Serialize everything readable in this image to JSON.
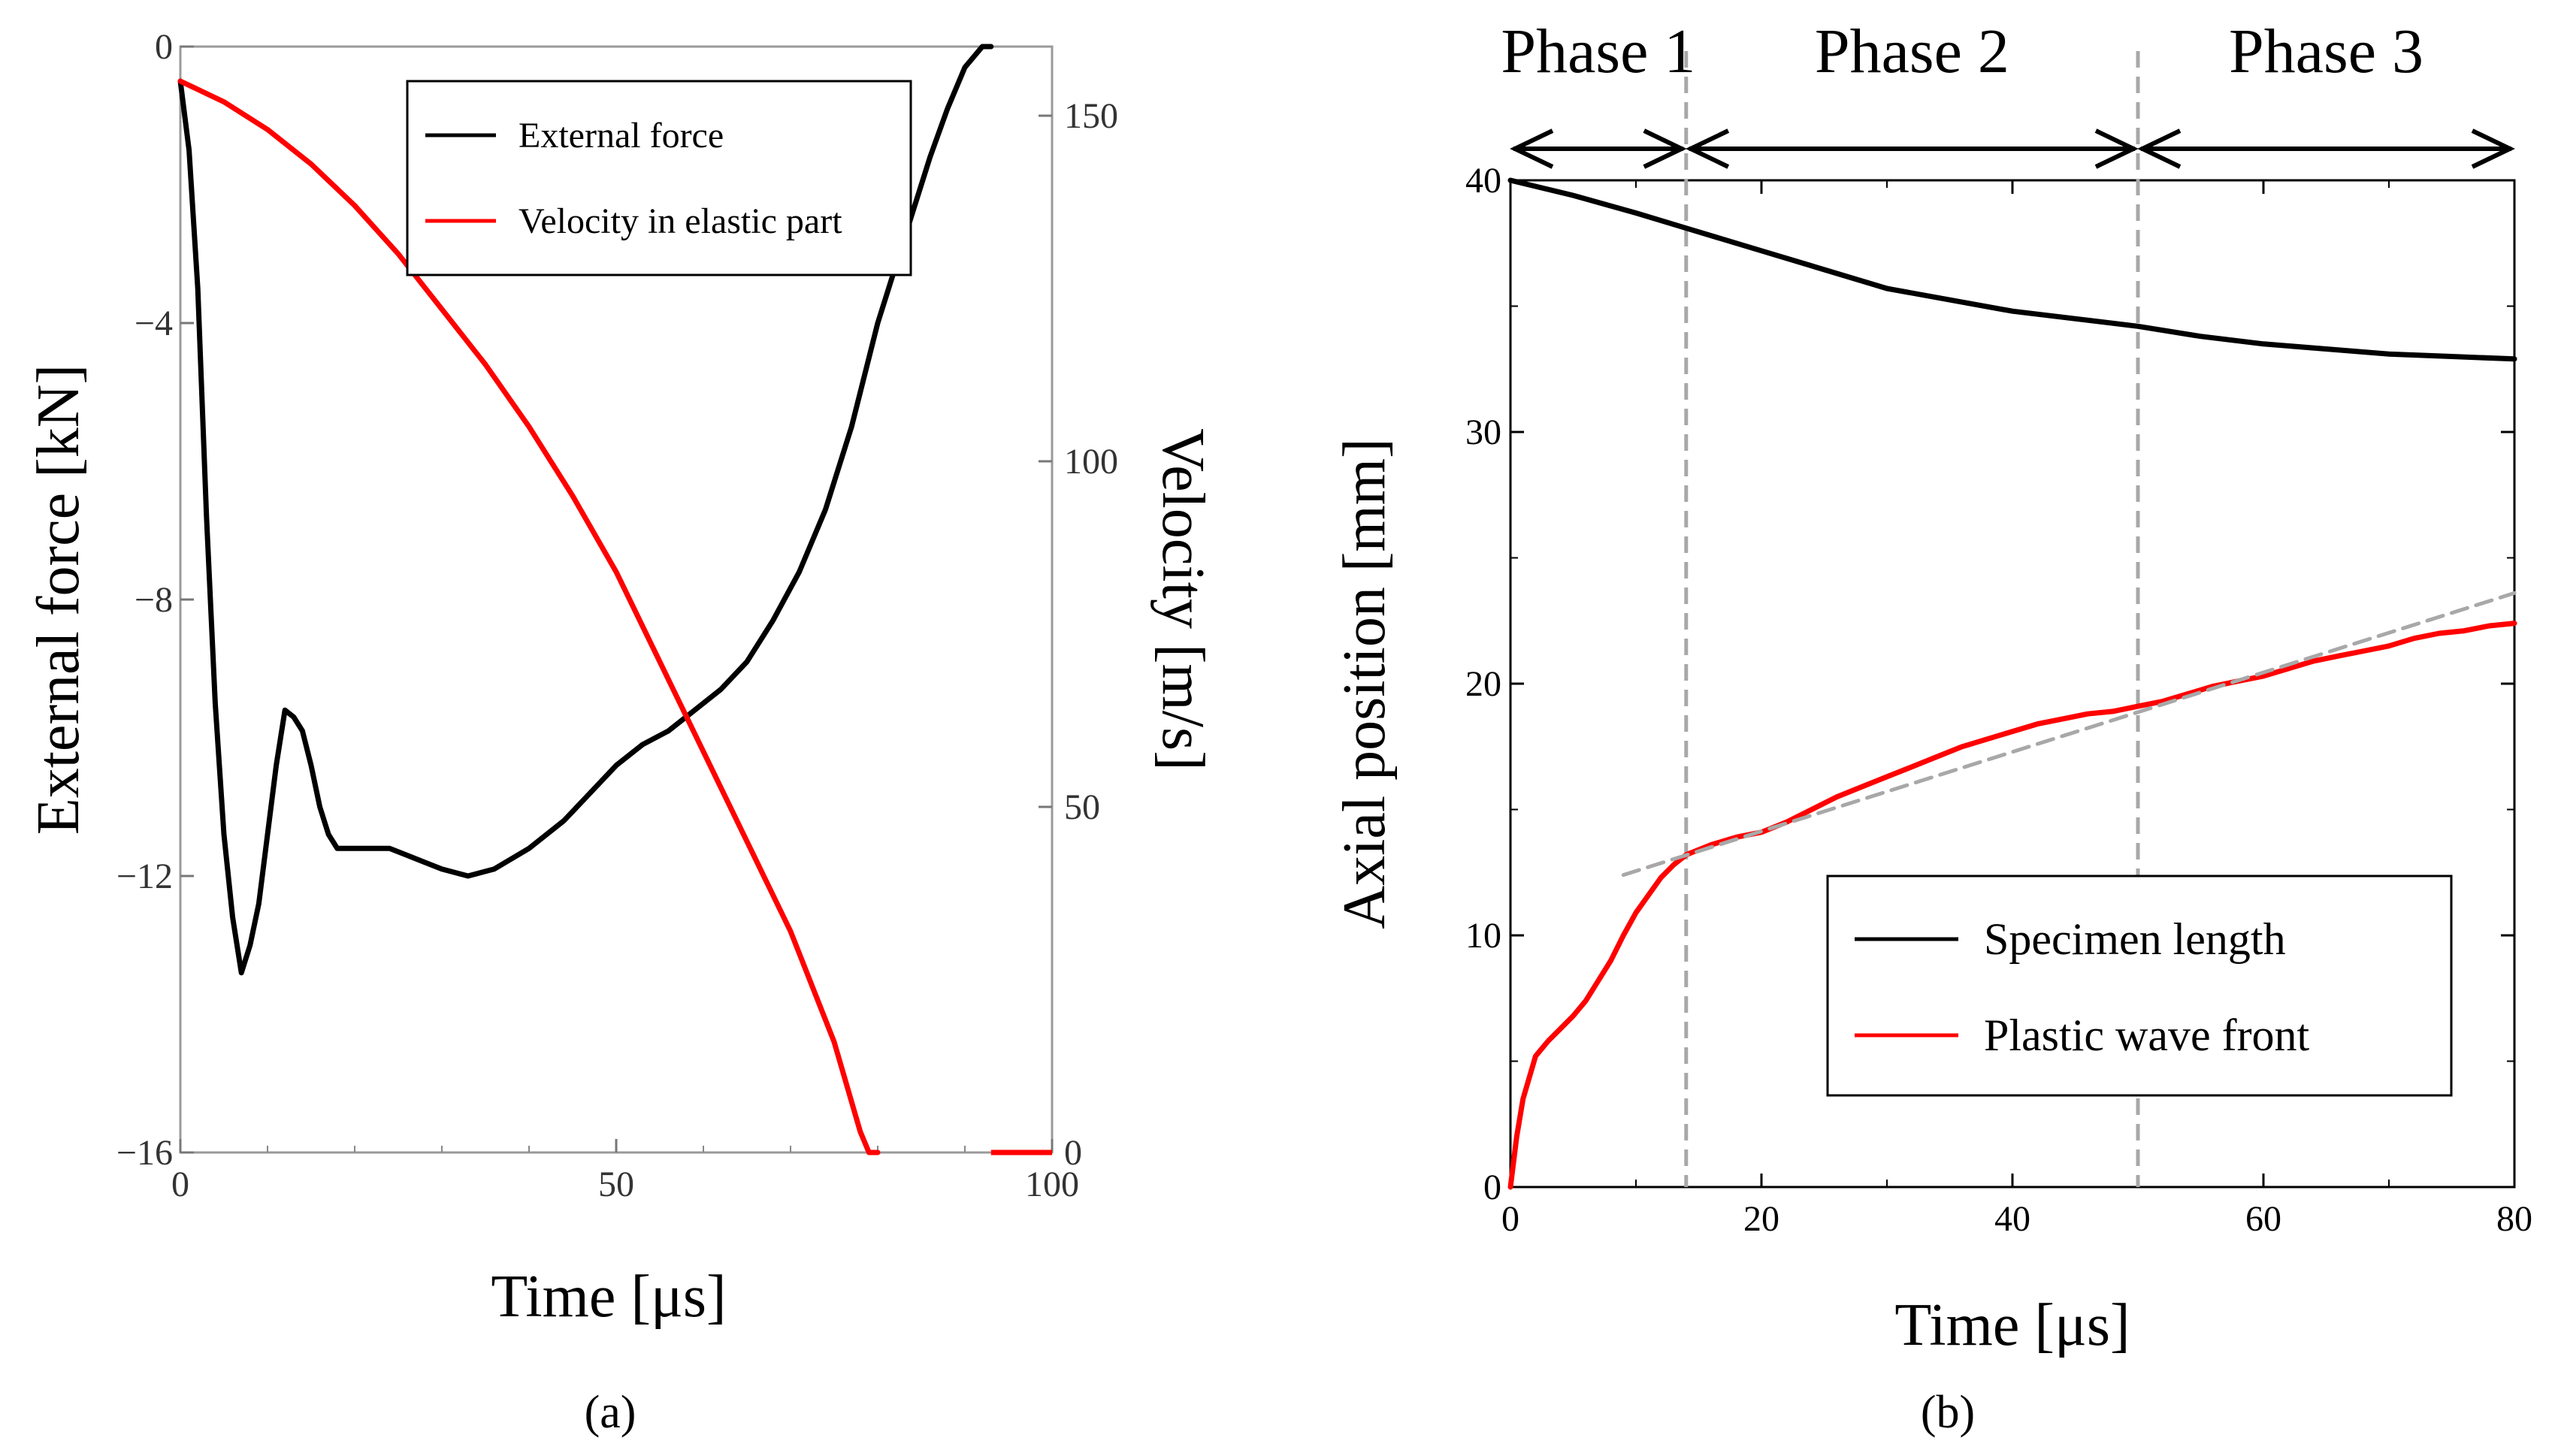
{
  "panels": {
    "a": {
      "label": "(a)"
    },
    "b": {
      "label": "(b)"
    }
  },
  "chart_data": [
    {
      "type": "line",
      "xlabel": "Time [μs]",
      "ylabel": "External force [kN]",
      "ylabel_right": "Velocity [m/s]",
      "xlim": [
        0,
        100
      ],
      "ylim": [
        -16,
        0
      ],
      "ylim_right": [
        0,
        160
      ],
      "x_ticks": [
        0,
        50,
        100
      ],
      "y_ticks": [
        0,
        -4,
        -8,
        -12,
        -16
      ],
      "y_ticks_right": [
        150,
        100,
        50,
        0
      ],
      "legend_position": "top-right",
      "grid": false,
      "series": [
        {
          "name": "External force",
          "color": "#000000",
          "axis": "left",
          "x": [
            0,
            1,
            2,
            3,
            4,
            5,
            6,
            7,
            8,
            9,
            10,
            11,
            12,
            13,
            14,
            15,
            16,
            17,
            18,
            19,
            20,
            22,
            24,
            26,
            28,
            30,
            33,
            36,
            40,
            44,
            47,
            50,
            53,
            56,
            59,
            62,
            65,
            68,
            71,
            74,
            77,
            80,
            83,
            86,
            88,
            90,
            92,
            93
          ],
          "y": [
            -0.5,
            -1.5,
            -3.5,
            -6.8,
            -9.5,
            -11.4,
            -12.6,
            -13.4,
            -13.0,
            -12.4,
            -11.4,
            -10.4,
            -9.6,
            -9.7,
            -9.9,
            -10.4,
            -11.0,
            -11.4,
            -11.6,
            -11.6,
            -11.6,
            -11.6,
            -11.6,
            -11.7,
            -11.8,
            -11.9,
            -12.0,
            -11.9,
            -11.6,
            -11.2,
            -10.8,
            -10.4,
            -10.1,
            -9.9,
            -9.6,
            -9.3,
            -8.9,
            -8.3,
            -7.6,
            -6.7,
            -5.5,
            -4.0,
            -2.8,
            -1.6,
            -0.9,
            -0.3,
            0.0,
            0.0
          ]
        },
        {
          "name": "Velocity in elastic part",
          "color": "#ff0000",
          "axis": "right",
          "x": [
            0,
            5,
            10,
            15,
            20,
            25,
            30,
            35,
            40,
            45,
            50,
            55,
            60,
            65,
            70,
            75,
            78,
            79,
            80
          ],
          "x_tail": [
            93,
            95,
            100
          ],
          "y": [
            155,
            152,
            148,
            143,
            137,
            130,
            122,
            114,
            105,
            95,
            84,
            71,
            58,
            45,
            32,
            16,
            3,
            0,
            0
          ],
          "y_tail": [
            0,
            0,
            0
          ]
        }
      ],
      "legend_entries": [
        "External force",
        "Velocity in elastic part"
      ]
    },
    {
      "type": "line",
      "xlabel": "Time [μs]",
      "ylabel": "Axial position [mm]",
      "xlim": [
        0,
        80
      ],
      "ylim": [
        0,
        40
      ],
      "x_ticks": [
        0,
        20,
        40,
        60,
        80
      ],
      "y_ticks": [
        0,
        10,
        20,
        30,
        40
      ],
      "legend_position": "bottom-right",
      "grid": false,
      "phases": [
        {
          "label": "Phase 1",
          "start": 0,
          "end": 14
        },
        {
          "label": "Phase 2",
          "start": 14,
          "end": 50
        },
        {
          "label": "Phase 3",
          "start": 50,
          "end": 80
        }
      ],
      "phase_boundaries": [
        14,
        50
      ],
      "series": [
        {
          "name": "Specimen length",
          "color": "#000000",
          "x": [
            0,
            5,
            10,
            14,
            20,
            30,
            40,
            50,
            55,
            60,
            65,
            70,
            75,
            80
          ],
          "y": [
            40,
            39.4,
            38.7,
            38.1,
            37.2,
            35.7,
            34.8,
            34.2,
            33.8,
            33.5,
            33.3,
            33.1,
            33.0,
            32.9
          ]
        },
        {
          "name": "Plastic wave front",
          "color": "#ff0000",
          "x": [
            0,
            0.5,
            1,
            2,
            3,
            4,
            5,
            6,
            7,
            8,
            9,
            10,
            11,
            12,
            13,
            14,
            16,
            18,
            20,
            22,
            24,
            26,
            28,
            30,
            32,
            34,
            36,
            38,
            40,
            42,
            44,
            46,
            48,
            50,
            52,
            54,
            56,
            58,
            60,
            62,
            64,
            66,
            68,
            70,
            72,
            74,
            76,
            78,
            80
          ],
          "y": [
            0,
            2.0,
            3.5,
            5.2,
            5.8,
            6.3,
            6.8,
            7.4,
            8.2,
            9.0,
            10.0,
            10.9,
            11.6,
            12.3,
            12.8,
            13.2,
            13.6,
            13.9,
            14.1,
            14.5,
            15.0,
            15.5,
            15.9,
            16.3,
            16.7,
            17.1,
            17.5,
            17.8,
            18.1,
            18.4,
            18.6,
            18.8,
            18.9,
            19.1,
            19.3,
            19.6,
            19.9,
            20.1,
            20.3,
            20.6,
            20.9,
            21.1,
            21.3,
            21.5,
            21.8,
            22.0,
            22.1,
            22.3,
            22.4
          ]
        },
        {
          "name": "",
          "style": "dashed",
          "color": "#a8a8a8",
          "x": [
            9,
            80
          ],
          "y": [
            12.4,
            23.6
          ]
        }
      ],
      "legend_entries": [
        "Specimen length",
        "Plastic wave front"
      ]
    }
  ]
}
